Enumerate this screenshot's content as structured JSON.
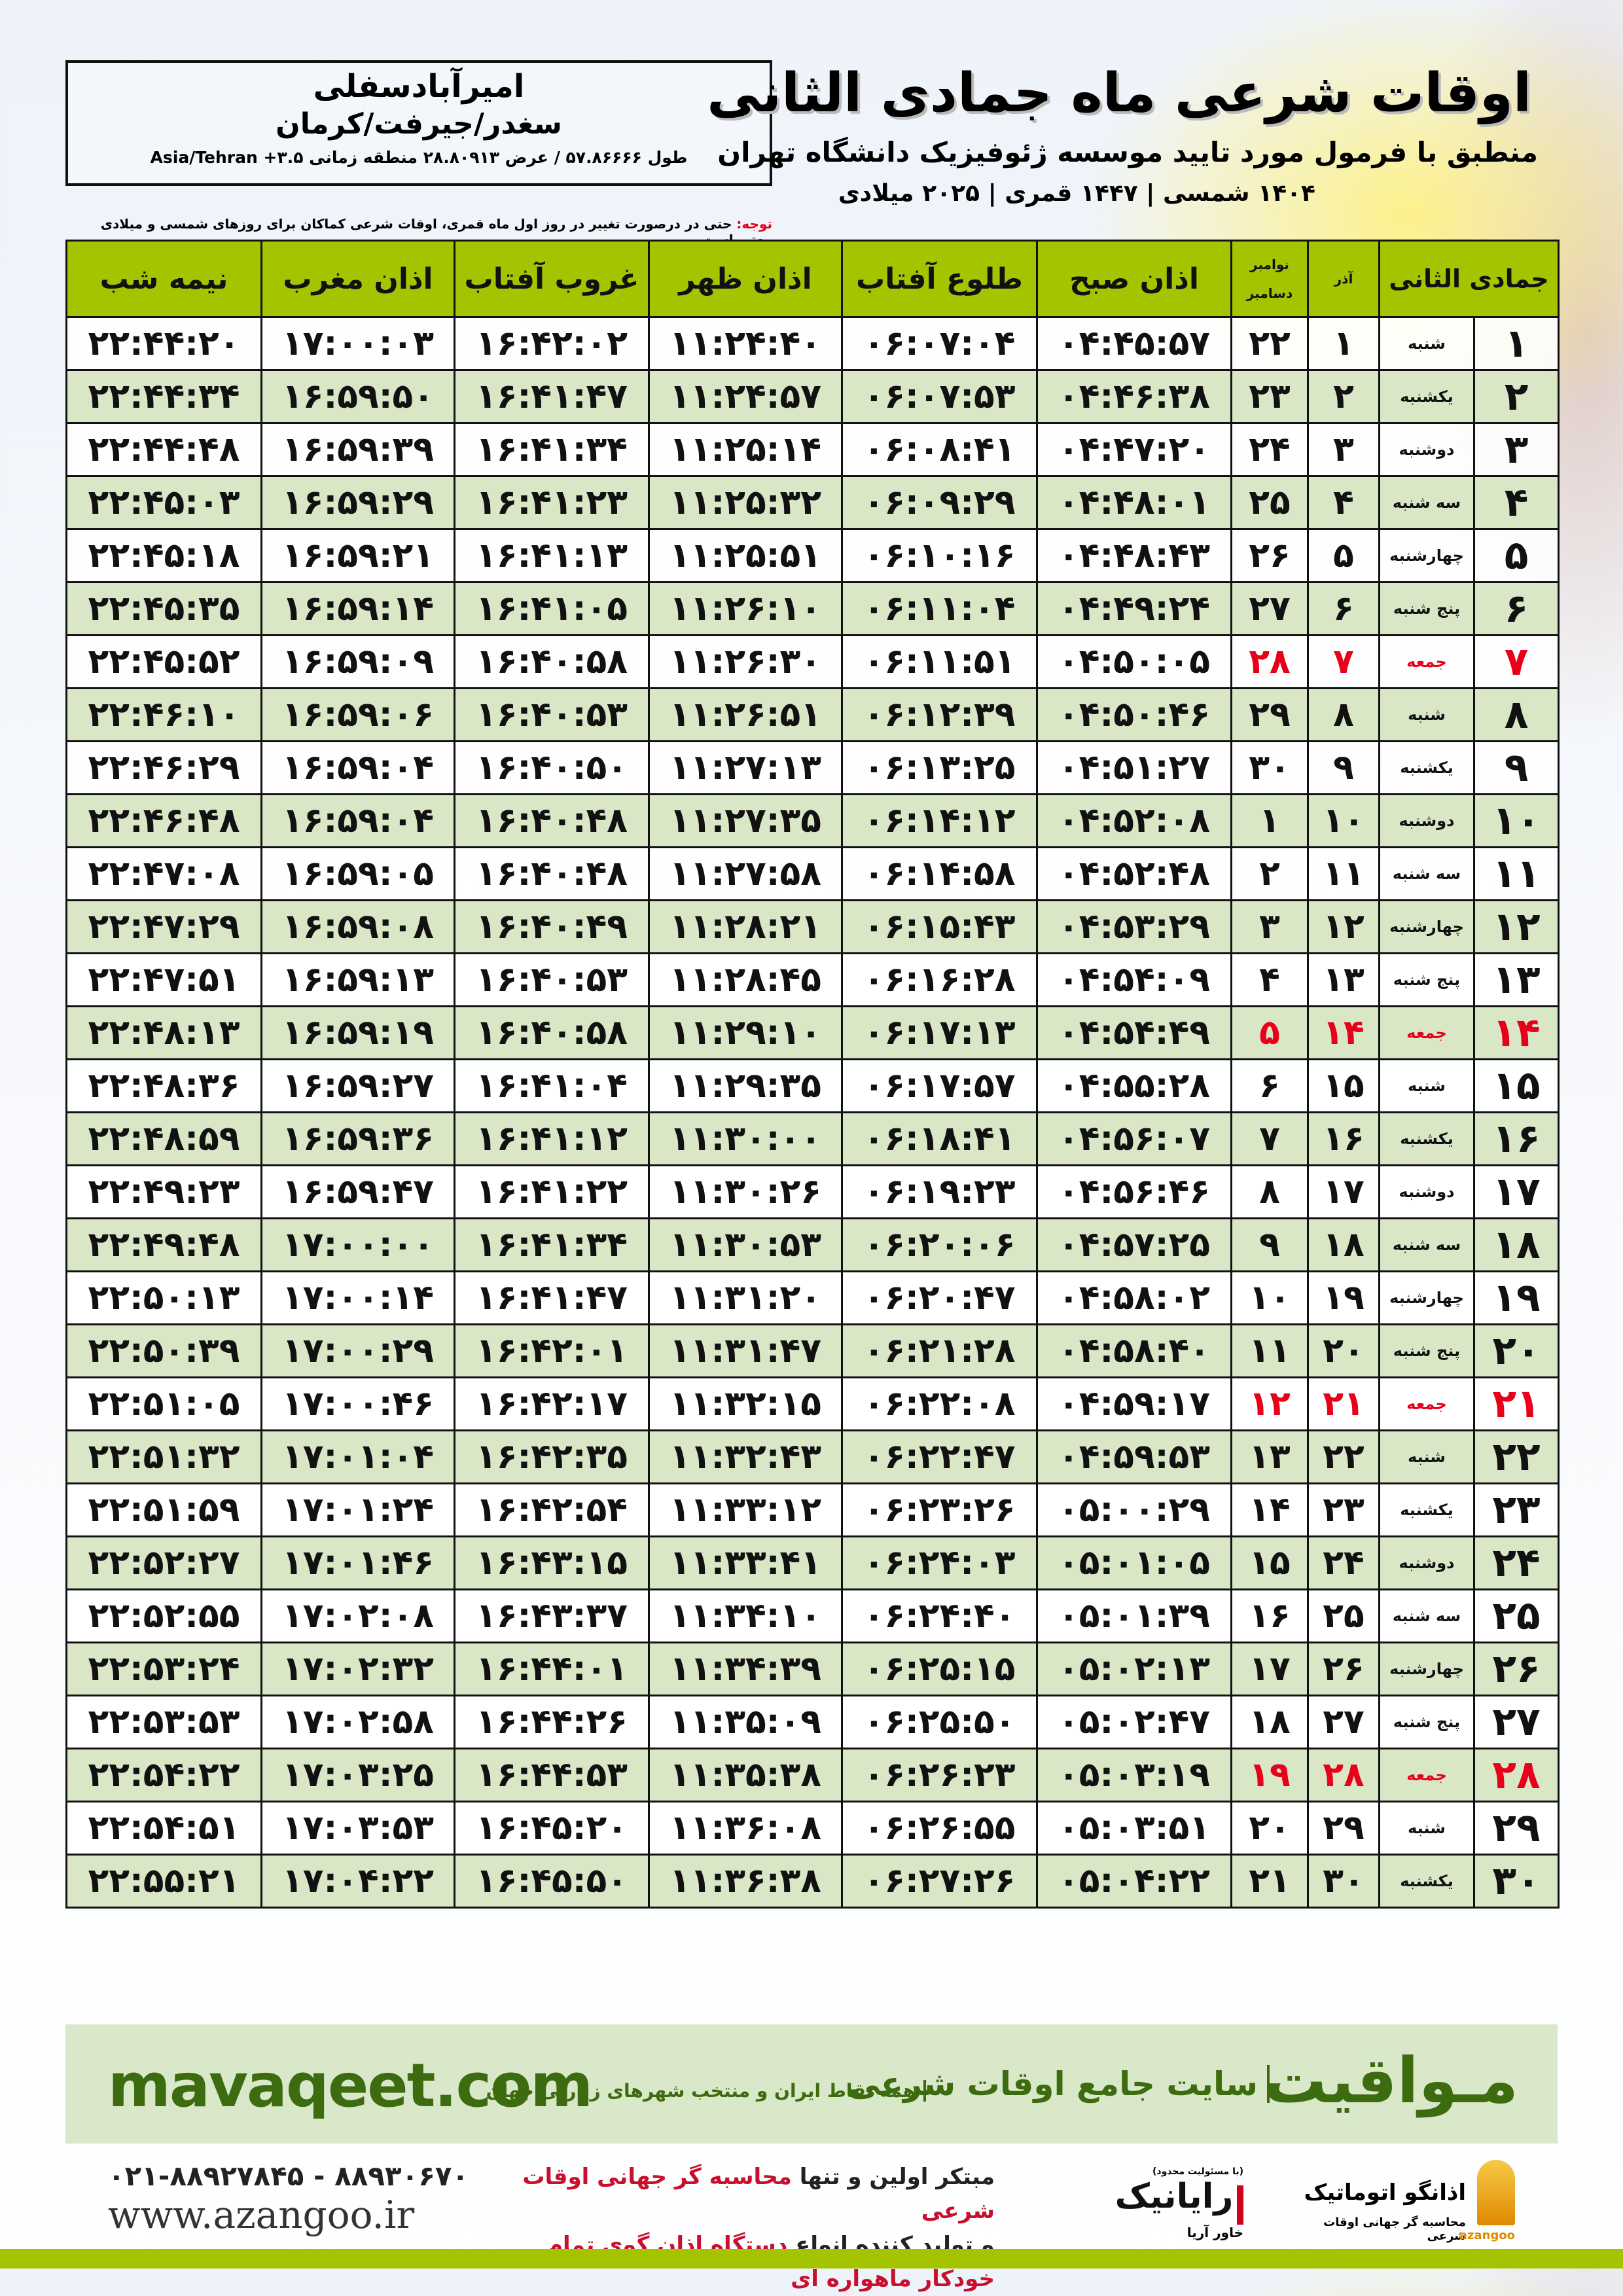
{
  "header": {
    "title": "اوقات شرعی ماه جمادی الثانی",
    "subtitle": "منطبق با فرمول مورد تایید موسسه ژئوفیزیک دانشگاه تهران",
    "dates": "۱۴۰۴ شمسی | ۱۴۴۷ قمری | ۲۰۲۵ میلادی",
    "note_label": "توجه:",
    "note_text": " حتی در درصورت تغییر در روز اول ماه قمری، اوقات شرعی کماکان برای روزهای شمسی و میلادی معتبر است."
  },
  "location": {
    "city": "امیرآبادسفلی",
    "region": "سغدر/جیرفت/کرمان",
    "coords": "طول ۵۷.۸۶۶۶۶ / عرض ۲۸.۸۰۹۱۳ منطقه زمانی Asia/Tehran +۳.۵"
  },
  "table": {
    "headers": {
      "day": "جمادی الثانی",
      "azar": "آذر",
      "dec_top": "نوامبر",
      "dec_bottom": "دسامبر",
      "sobh": "اذان صبح",
      "tolu": "طلوع آفتاب",
      "zohr": "اذان ظهر",
      "ghorub": "غروب آفتاب",
      "maghrib": "اذان مغرب",
      "nimeh": "نیمه شب"
    },
    "holiday_color": "#e8001a",
    "header_color": "#a4c400",
    "stripe_color": "#d9e7c7",
    "rows": [
      {
        "day": "۱",
        "weekday": "شنبه",
        "azar": "۱",
        "dec": "۲۲",
        "sobh": "۰۴:۴۵:۵۷",
        "tolu": "۰۶:۰۷:۰۴",
        "zohr": "۱۱:۲۴:۴۰",
        "ghorub": "۱۶:۴۲:۰۲",
        "maghrib": "۱۷:۰۰:۰۳",
        "nimeh": "۲۲:۴۴:۲۰",
        "holiday": false
      },
      {
        "day": "۲",
        "weekday": "یکشنبه",
        "azar": "۲",
        "dec": "۲۳",
        "sobh": "۰۴:۴۶:۳۸",
        "tolu": "۰۶:۰۷:۵۳",
        "zohr": "۱۱:۲۴:۵۷",
        "ghorub": "۱۶:۴۱:۴۷",
        "maghrib": "۱۶:۵۹:۵۰",
        "nimeh": "۲۲:۴۴:۳۴",
        "holiday": false
      },
      {
        "day": "۳",
        "weekday": "دوشنبه",
        "azar": "۳",
        "dec": "۲۴",
        "sobh": "۰۴:۴۷:۲۰",
        "tolu": "۰۶:۰۸:۴۱",
        "zohr": "۱۱:۲۵:۱۴",
        "ghorub": "۱۶:۴۱:۳۴",
        "maghrib": "۱۶:۵۹:۳۹",
        "nimeh": "۲۲:۴۴:۴۸",
        "holiday": false
      },
      {
        "day": "۴",
        "weekday": "سه شنبه",
        "azar": "۴",
        "dec": "۲۵",
        "sobh": "۰۴:۴۸:۰۱",
        "tolu": "۰۶:۰۹:۲۹",
        "zohr": "۱۱:۲۵:۳۲",
        "ghorub": "۱۶:۴۱:۲۳",
        "maghrib": "۱۶:۵۹:۲۹",
        "nimeh": "۲۲:۴۵:۰۳",
        "holiday": false
      },
      {
        "day": "۵",
        "weekday": "چهارشنبه",
        "azar": "۵",
        "dec": "۲۶",
        "sobh": "۰۴:۴۸:۴۳",
        "tolu": "۰۶:۱۰:۱۶",
        "zohr": "۱۱:۲۵:۵۱",
        "ghorub": "۱۶:۴۱:۱۳",
        "maghrib": "۱۶:۵۹:۲۱",
        "nimeh": "۲۲:۴۵:۱۸",
        "holiday": false
      },
      {
        "day": "۶",
        "weekday": "پنج شنبه",
        "azar": "۶",
        "dec": "۲۷",
        "sobh": "۰۴:۴۹:۲۴",
        "tolu": "۰۶:۱۱:۰۴",
        "zohr": "۱۱:۲۶:۱۰",
        "ghorub": "۱۶:۴۱:۰۵",
        "maghrib": "۱۶:۵۹:۱۴",
        "nimeh": "۲۲:۴۵:۳۵",
        "holiday": false
      },
      {
        "day": "۷",
        "weekday": "جمعه",
        "azar": "۷",
        "dec": "۲۸",
        "sobh": "۰۴:۵۰:۰۵",
        "tolu": "۰۶:۱۱:۵۱",
        "zohr": "۱۱:۲۶:۳۰",
        "ghorub": "۱۶:۴۰:۵۸",
        "maghrib": "۱۶:۵۹:۰۹",
        "nimeh": "۲۲:۴۵:۵۲",
        "holiday": true
      },
      {
        "day": "۸",
        "weekday": "شنبه",
        "azar": "۸",
        "dec": "۲۹",
        "sobh": "۰۴:۵۰:۴۶",
        "tolu": "۰۶:۱۲:۳۹",
        "zohr": "۱۱:۲۶:۵۱",
        "ghorub": "۱۶:۴۰:۵۳",
        "maghrib": "۱۶:۵۹:۰۶",
        "nimeh": "۲۲:۴۶:۱۰",
        "holiday": false
      },
      {
        "day": "۹",
        "weekday": "یکشنبه",
        "azar": "۹",
        "dec": "۳۰",
        "sobh": "۰۴:۵۱:۲۷",
        "tolu": "۰۶:۱۳:۲۵",
        "zohr": "۱۱:۲۷:۱۳",
        "ghorub": "۱۶:۴۰:۵۰",
        "maghrib": "۱۶:۵۹:۰۴",
        "nimeh": "۲۲:۴۶:۲۹",
        "holiday": false
      },
      {
        "day": "۱۰",
        "weekday": "دوشنبه",
        "azar": "۱۰",
        "dec": "۱",
        "sobh": "۰۴:۵۲:۰۸",
        "tolu": "۰۶:۱۴:۱۲",
        "zohr": "۱۱:۲۷:۳۵",
        "ghorub": "۱۶:۴۰:۴۸",
        "maghrib": "۱۶:۵۹:۰۴",
        "nimeh": "۲۲:۴۶:۴۸",
        "holiday": false
      },
      {
        "day": "۱۱",
        "weekday": "سه شنبه",
        "azar": "۱۱",
        "dec": "۲",
        "sobh": "۰۴:۵۲:۴۸",
        "tolu": "۰۶:۱۴:۵۸",
        "zohr": "۱۱:۲۷:۵۸",
        "ghorub": "۱۶:۴۰:۴۸",
        "maghrib": "۱۶:۵۹:۰۵",
        "nimeh": "۲۲:۴۷:۰۸",
        "holiday": false
      },
      {
        "day": "۱۲",
        "weekday": "چهارشنبه",
        "azar": "۱۲",
        "dec": "۳",
        "sobh": "۰۴:۵۳:۲۹",
        "tolu": "۰۶:۱۵:۴۳",
        "zohr": "۱۱:۲۸:۲۱",
        "ghorub": "۱۶:۴۰:۴۹",
        "maghrib": "۱۶:۵۹:۰۸",
        "nimeh": "۲۲:۴۷:۲۹",
        "holiday": false
      },
      {
        "day": "۱۳",
        "weekday": "پنج شنبه",
        "azar": "۱۳",
        "dec": "۴",
        "sobh": "۰۴:۵۴:۰۹",
        "tolu": "۰۶:۱۶:۲۸",
        "zohr": "۱۱:۲۸:۴۵",
        "ghorub": "۱۶:۴۰:۵۳",
        "maghrib": "۱۶:۵۹:۱۳",
        "nimeh": "۲۲:۴۷:۵۱",
        "holiday": false
      },
      {
        "day": "۱۴",
        "weekday": "جمعه",
        "azar": "۱۴",
        "dec": "۵",
        "sobh": "۰۴:۵۴:۴۹",
        "tolu": "۰۶:۱۷:۱۳",
        "zohr": "۱۱:۲۹:۱۰",
        "ghorub": "۱۶:۴۰:۵۸",
        "maghrib": "۱۶:۵۹:۱۹",
        "nimeh": "۲۲:۴۸:۱۳",
        "holiday": true
      },
      {
        "day": "۱۵",
        "weekday": "شنبه",
        "azar": "۱۵",
        "dec": "۶",
        "sobh": "۰۴:۵۵:۲۸",
        "tolu": "۰۶:۱۷:۵۷",
        "zohr": "۱۱:۲۹:۳۵",
        "ghorub": "۱۶:۴۱:۰۴",
        "maghrib": "۱۶:۵۹:۲۷",
        "nimeh": "۲۲:۴۸:۳۶",
        "holiday": false
      },
      {
        "day": "۱۶",
        "weekday": "یکشنبه",
        "azar": "۱۶",
        "dec": "۷",
        "sobh": "۰۴:۵۶:۰۷",
        "tolu": "۰۶:۱۸:۴۱",
        "zohr": "۱۱:۳۰:۰۰",
        "ghorub": "۱۶:۴۱:۱۲",
        "maghrib": "۱۶:۵۹:۳۶",
        "nimeh": "۲۲:۴۸:۵۹",
        "holiday": false
      },
      {
        "day": "۱۷",
        "weekday": "دوشنبه",
        "azar": "۱۷",
        "dec": "۸",
        "sobh": "۰۴:۵۶:۴۶",
        "tolu": "۰۶:۱۹:۲۳",
        "zohr": "۱۱:۳۰:۲۶",
        "ghorub": "۱۶:۴۱:۲۲",
        "maghrib": "۱۶:۵۹:۴۷",
        "nimeh": "۲۲:۴۹:۲۳",
        "holiday": false
      },
      {
        "day": "۱۸",
        "weekday": "سه شنبه",
        "azar": "۱۸",
        "dec": "۹",
        "sobh": "۰۴:۵۷:۲۵",
        "tolu": "۰۶:۲۰:۰۶",
        "zohr": "۱۱:۳۰:۵۳",
        "ghorub": "۱۶:۴۱:۳۴",
        "maghrib": "۱۷:۰۰:۰۰",
        "nimeh": "۲۲:۴۹:۴۸",
        "holiday": false
      },
      {
        "day": "۱۹",
        "weekday": "چهارشنبه",
        "azar": "۱۹",
        "dec": "۱۰",
        "sobh": "۰۴:۵۸:۰۲",
        "tolu": "۰۶:۲۰:۴۷",
        "zohr": "۱۱:۳۱:۲۰",
        "ghorub": "۱۶:۴۱:۴۷",
        "maghrib": "۱۷:۰۰:۱۴",
        "nimeh": "۲۲:۵۰:۱۳",
        "holiday": false
      },
      {
        "day": "۲۰",
        "weekday": "پنج شنبه",
        "azar": "۲۰",
        "dec": "۱۱",
        "sobh": "۰۴:۵۸:۴۰",
        "tolu": "۰۶:۲۱:۲۸",
        "zohr": "۱۱:۳۱:۴۷",
        "ghorub": "۱۶:۴۲:۰۱",
        "maghrib": "۱۷:۰۰:۲۹",
        "nimeh": "۲۲:۵۰:۳۹",
        "holiday": false
      },
      {
        "day": "۲۱",
        "weekday": "جمعه",
        "azar": "۲۱",
        "dec": "۱۲",
        "sobh": "۰۴:۵۹:۱۷",
        "tolu": "۰۶:۲۲:۰۸",
        "zohr": "۱۱:۳۲:۱۵",
        "ghorub": "۱۶:۴۲:۱۷",
        "maghrib": "۱۷:۰۰:۴۶",
        "nimeh": "۲۲:۵۱:۰۵",
        "holiday": true
      },
      {
        "day": "۲۲",
        "weekday": "شنبه",
        "azar": "۲۲",
        "dec": "۱۳",
        "sobh": "۰۴:۵۹:۵۳",
        "tolu": "۰۶:۲۲:۴۷",
        "zohr": "۱۱:۳۲:۴۳",
        "ghorub": "۱۶:۴۲:۳۵",
        "maghrib": "۱۷:۰۱:۰۴",
        "nimeh": "۲۲:۵۱:۳۲",
        "holiday": false
      },
      {
        "day": "۲۳",
        "weekday": "یکشنبه",
        "azar": "۲۳",
        "dec": "۱۴",
        "sobh": "۰۵:۰۰:۲۹",
        "tolu": "۰۶:۲۳:۲۶",
        "zohr": "۱۱:۳۳:۱۲",
        "ghorub": "۱۶:۴۲:۵۴",
        "maghrib": "۱۷:۰۱:۲۴",
        "nimeh": "۲۲:۵۱:۵۹",
        "holiday": false
      },
      {
        "day": "۲۴",
        "weekday": "دوشنبه",
        "azar": "۲۴",
        "dec": "۱۵",
        "sobh": "۰۵:۰۱:۰۵",
        "tolu": "۰۶:۲۴:۰۳",
        "zohr": "۱۱:۳۳:۴۱",
        "ghorub": "۱۶:۴۳:۱۵",
        "maghrib": "۱۷:۰۱:۴۶",
        "nimeh": "۲۲:۵۲:۲۷",
        "holiday": false
      },
      {
        "day": "۲۵",
        "weekday": "سه شنبه",
        "azar": "۲۵",
        "dec": "۱۶",
        "sobh": "۰۵:۰۱:۳۹",
        "tolu": "۰۶:۲۴:۴۰",
        "zohr": "۱۱:۳۴:۱۰",
        "ghorub": "۱۶:۴۳:۳۷",
        "maghrib": "۱۷:۰۲:۰۸",
        "nimeh": "۲۲:۵۲:۵۵",
        "holiday": false
      },
      {
        "day": "۲۶",
        "weekday": "چهارشنبه",
        "azar": "۲۶",
        "dec": "۱۷",
        "sobh": "۰۵:۰۲:۱۳",
        "tolu": "۰۶:۲۵:۱۵",
        "zohr": "۱۱:۳۴:۳۹",
        "ghorub": "۱۶:۴۴:۰۱",
        "maghrib": "۱۷:۰۲:۳۲",
        "nimeh": "۲۲:۵۳:۲۴",
        "holiday": false
      },
      {
        "day": "۲۷",
        "weekday": "پنج شنبه",
        "azar": "۲۷",
        "dec": "۱۸",
        "sobh": "۰۵:۰۲:۴۷",
        "tolu": "۰۶:۲۵:۵۰",
        "zohr": "۱۱:۳۵:۰۹",
        "ghorub": "۱۶:۴۴:۲۶",
        "maghrib": "۱۷:۰۲:۵۸",
        "nimeh": "۲۲:۵۳:۵۳",
        "holiday": false
      },
      {
        "day": "۲۸",
        "weekday": "جمعه",
        "azar": "۲۸",
        "dec": "۱۹",
        "sobh": "۰۵:۰۳:۱۹",
        "tolu": "۰۶:۲۶:۲۳",
        "zohr": "۱۱:۳۵:۳۸",
        "ghorub": "۱۶:۴۴:۵۳",
        "maghrib": "۱۷:۰۳:۲۵",
        "nimeh": "۲۲:۵۴:۲۲",
        "holiday": true
      },
      {
        "day": "۲۹",
        "weekday": "شنبه",
        "azar": "۲۹",
        "dec": "۲۰",
        "sobh": "۰۵:۰۳:۵۱",
        "tolu": "۰۶:۲۶:۵۵",
        "zohr": "۱۱:۳۶:۰۸",
        "ghorub": "۱۶:۴۵:۲۰",
        "maghrib": "۱۷:۰۳:۵۳",
        "nimeh": "۲۲:۵۴:۵۱",
        "holiday": false
      },
      {
        "day": "۳۰",
        "weekday": "یکشنبه",
        "azar": "۳۰",
        "dec": "۲۱",
        "sobh": "۰۵:۰۴:۲۲",
        "tolu": "۰۶:۲۷:۲۶",
        "zohr": "۱۱:۳۶:۳۸",
        "ghorub": "۱۶:۴۵:۵۰",
        "maghrib": "۱۷:۰۴:۲۲",
        "nimeh": "۲۲:۵۵:۲۱",
        "holiday": false
      }
    ]
  },
  "footer": {
    "brand": "مـواقیت",
    "tagline": "سایت جامع اوقات شرعی",
    "tagline2": "همه نقاط ایران و منتخب شهرهای زیارتی جهان",
    "site": "mavaqeet.com",
    "promo_1a": "مبتکر اولین و تنها ",
    "promo_1b": "محاسبه گر جهانی اوقات شرعی",
    "promo_2a": "و تولید کننده انواع ",
    "promo_2b": "دستگاه اذان گوی تمام خودکار ماهواره ای",
    "phone": "۰۲۱-۸۸۹۲۷۸۴۵ - ۸۸۹۳۰۶۷۰",
    "web": "www.azangoo.ir",
    "logo_rayanik": "رایانیک",
    "logo_rayanik_sub": "خاور آریا",
    "logo_rayanik_note": "(با مسئولیت محدود)",
    "logo_azangoo": "اذانگو اتوماتیک",
    "logo_azangoo_sub": "محاسبه گر جهانی اوقات شرعی",
    "logo_azangoo_latin": "azangoo",
    "accent_green": "#3d6b10",
    "accent_red": "#c8102e"
  }
}
